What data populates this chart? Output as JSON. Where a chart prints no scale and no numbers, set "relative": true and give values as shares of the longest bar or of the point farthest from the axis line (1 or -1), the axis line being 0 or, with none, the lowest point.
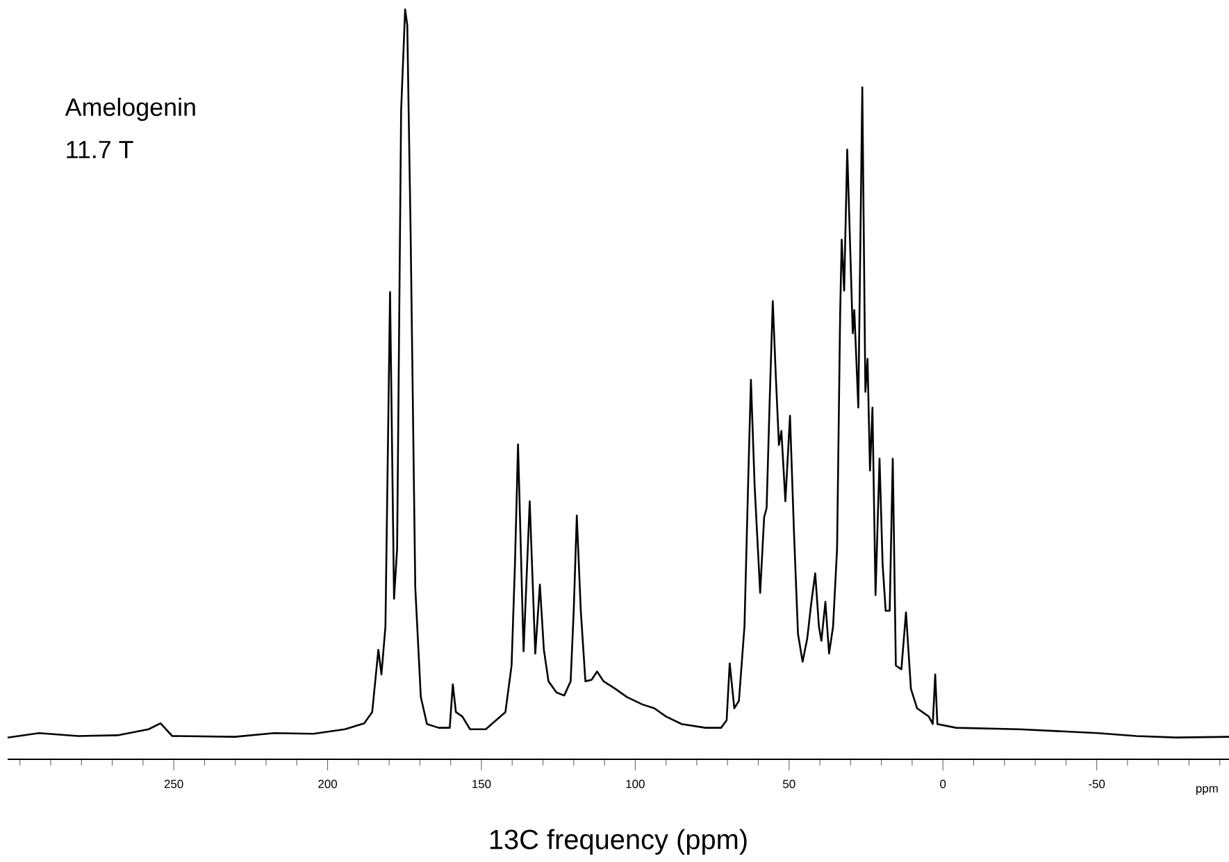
{
  "chart_data": {
    "type": "line",
    "title": "Amelogenin",
    "subtitle": "11.7 T",
    "xlabel": "13C frequency (ppm)",
    "annotations": [
      "ppm"
    ],
    "relative": true,
    "color": "#000000",
    "xlim": [
      304,
      -93
    ],
    "xticks": [
      {
        "value": 300,
        "label": null
      },
      {
        "value": 290,
        "label": null
      },
      {
        "value": 280,
        "label": null
      },
      {
        "value": 270,
        "label": null
      },
      {
        "value": 260,
        "label": null
      },
      250,
      {
        "value": 240,
        "label": null
      },
      {
        "value": 230,
        "label": null
      },
      {
        "value": 220,
        "label": null
      },
      {
        "value": 210,
        "label": null
      },
      200,
      {
        "value": 190,
        "label": null
      },
      {
        "value": 180,
        "label": null
      },
      {
        "value": 170,
        "label": null
      },
      {
        "value": 160,
        "label": null
      },
      150,
      {
        "value": 140,
        "label": null
      },
      {
        "value": 130,
        "label": null
      },
      {
        "value": 120,
        "label": null
      },
      {
        "value": 110,
        "label": null
      },
      100,
      {
        "value": 90,
        "label": null
      },
      {
        "value": 80,
        "label": null
      },
      {
        "value": 70,
        "label": null
      },
      {
        "value": 60,
        "label": null
      },
      50,
      {
        "value": 40,
        "label": null
      },
      {
        "value": 30,
        "label": null
      },
      {
        "value": 20,
        "label": null
      },
      {
        "value": 10,
        "label": null
      },
      0,
      {
        "value": -10,
        "label": null
      },
      {
        "value": -20,
        "label": null
      },
      {
        "value": -30,
        "label": null
      },
      {
        "value": -40,
        "label": null
      },
      -50,
      {
        "value": -60,
        "label": null
      },
      {
        "value": -70,
        "label": null
      },
      {
        "value": -80,
        "label": null
      },
      {
        "value": -90,
        "label": null
      }
    ],
    "x": [
      304.0,
      293.8,
      281.1,
      268.3,
      258.2,
      254.3,
      250.5,
      230.1,
      217.4,
      204.6,
      194.4,
      188.1,
      185.5,
      183.5,
      182.5,
      181.2,
      179.7,
      178.4,
      177.4,
      176.1,
      174.8,
      174.1,
      173.0,
      171.5,
      169.7,
      167.7,
      163.9,
      160.3,
      159.3,
      158.3,
      156.2,
      153.7,
      148.6,
      142.2,
      140.2,
      139.1,
      138.1,
      136.3,
      134.3,
      132.5,
      131.0,
      129.7,
      128.2,
      125.6,
      123.1,
      121.0,
      120.0,
      119.0,
      117.7,
      116.2,
      114.2,
      112.4,
      110.3,
      106.5,
      102.7,
      97.6,
      93.8,
      90.0,
      84.9,
      77.2,
      72.1,
      70.3,
      69.3,
      67.8,
      66.3,
      64.5,
      63.2,
      62.4,
      61.2,
      59.4,
      58.1,
      57.3,
      56.3,
      55.3,
      54.3,
      53.3,
      52.5,
      51.2,
      49.7,
      48.4,
      47.1,
      45.6,
      44.1,
      42.8,
      41.5,
      40.3,
      39.5,
      38.2,
      37.0,
      35.7,
      34.4,
      33.4,
      32.9,
      32.1,
      31.1,
      30.1,
      29.3,
      28.8,
      27.5,
      26.2,
      25.2,
      24.5,
      23.7,
      22.9,
      21.9,
      20.6,
      19.6,
      18.6,
      17.3,
      16.3,
      15.3,
      13.5,
      12.0,
      10.4,
      8.4,
      4.6,
      3.3,
      2.5,
      1.8,
      -4.3,
      -24.7,
      -50.2,
      -62.9,
      -75.7,
      -93.0
    ],
    "values": [
      0.029,
      0.035,
      0.031,
      0.032,
      0.04,
      0.048,
      0.031,
      0.03,
      0.035,
      0.034,
      0.04,
      0.048,
      0.063,
      0.146,
      0.113,
      0.177,
      0.623,
      0.214,
      0.281,
      0.865,
      1.0,
      0.979,
      0.698,
      0.229,
      0.083,
      0.047,
      0.042,
      0.042,
      0.1,
      0.063,
      0.057,
      0.04,
      0.04,
      0.063,
      0.125,
      0.26,
      0.42,
      0.144,
      0.344,
      0.141,
      0.233,
      0.146,
      0.104,
      0.089,
      0.085,
      0.104,
      0.198,
      0.325,
      0.198,
      0.104,
      0.106,
      0.117,
      0.104,
      0.094,
      0.083,
      0.073,
      0.068,
      0.057,
      0.047,
      0.042,
      0.042,
      0.052,
      0.128,
      0.068,
      0.078,
      0.177,
      0.385,
      0.506,
      0.365,
      0.222,
      0.323,
      0.335,
      0.479,
      0.611,
      0.51,
      0.419,
      0.438,
      0.344,
      0.458,
      0.302,
      0.167,
      0.13,
      0.161,
      0.208,
      0.248,
      0.177,
      0.158,
      0.21,
      0.141,
      0.177,
      0.281,
      0.594,
      0.693,
      0.625,
      0.813,
      0.677,
      0.568,
      0.599,
      0.469,
      0.896,
      0.49,
      0.534,
      0.385,
      0.469,
      0.219,
      0.401,
      0.26,
      0.198,
      0.198,
      0.401,
      0.125,
      0.12,
      0.196,
      0.094,
      0.068,
      0.057,
      0.047,
      0.113,
      0.047,
      0.042,
      0.04,
      0.035,
      0.031,
      0.029,
      0.03
    ]
  }
}
